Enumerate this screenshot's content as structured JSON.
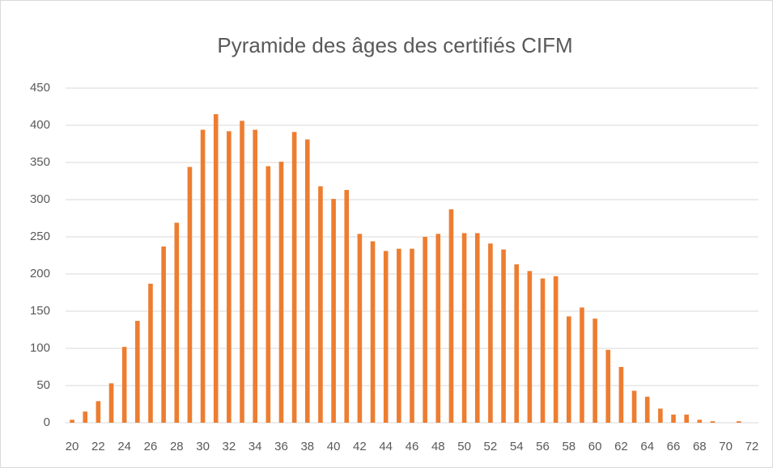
{
  "chart_data": {
    "type": "bar",
    "title": "Pyramide des âges des certifiés CIFM",
    "categories": [
      "20",
      null,
      "22",
      null,
      "24",
      null,
      "26",
      null,
      "28",
      null,
      "30",
      null,
      "32",
      null,
      "34",
      null,
      "36",
      null,
      "38",
      null,
      "40",
      null,
      "42",
      null,
      "44",
      null,
      "46",
      null,
      "48",
      null,
      "50",
      null,
      "52",
      null,
      "54",
      null,
      "56",
      null,
      "58",
      null,
      "60",
      null,
      "62",
      null,
      "64",
      null,
      "66",
      null,
      "68",
      null,
      "70",
      null,
      "72"
    ],
    "values": [
      4,
      15,
      29,
      53,
      102,
      137,
      187,
      237,
      269,
      344,
      394,
      415,
      392,
      406,
      394,
      345,
      351,
      391,
      381,
      318,
      301,
      313,
      254,
      244,
      231,
      234,
      234,
      250,
      254,
      287,
      255,
      255,
      241,
      233,
      213,
      204,
      194,
      197,
      143,
      155,
      140,
      98,
      75,
      43,
      35,
      19,
      11,
      11,
      4,
      2,
      0,
      2,
      0
    ],
    "color": "#ed7d31",
    "ylim": [
      0,
      450
    ],
    "yticks": [
      0,
      50,
      100,
      150,
      200,
      250,
      300,
      350,
      400,
      450
    ],
    "grid": true
  }
}
